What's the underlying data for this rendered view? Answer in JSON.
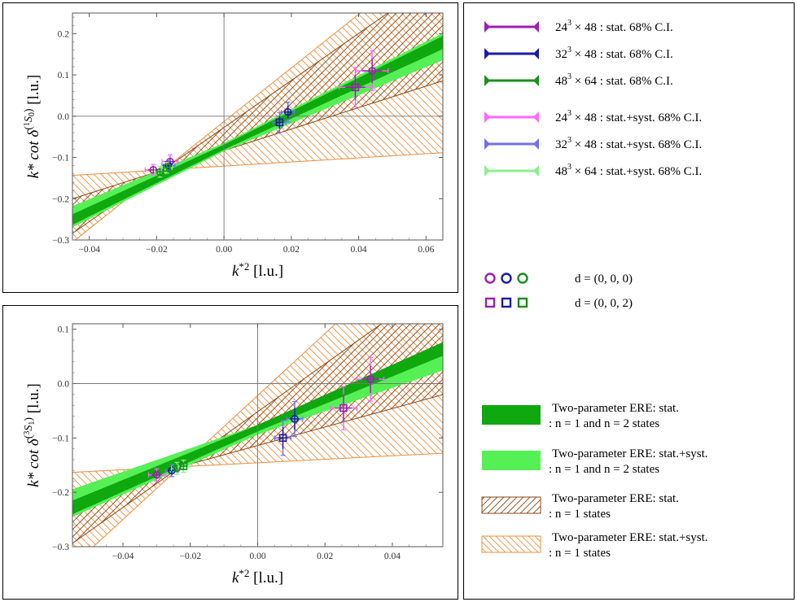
{
  "colors": {
    "purple_24": "#9b1fb0",
    "blue_32": "#1b1ba8",
    "green_48": "#1b8f1b",
    "pink_24_syst": "#ff66ff",
    "lblue_32_syst": "#7070ee",
    "lgreen_48_syst": "#8cf08c",
    "band_stat": "#0fa80f",
    "band_syst": "#55f055",
    "hatch_stat": "#8b4513",
    "hatch_syst": "#f08c3c"
  },
  "legend": {
    "errorbars": [
      {
        "base": "24",
        "exp": "3",
        "rest": " × 48 :  stat.  68% C.I.",
        "color": "#9b1fb0"
      },
      {
        "base": "32",
        "exp": "3",
        "rest": " × 48 :  stat.  68% C.I.",
        "color": "#1b1ba8"
      },
      {
        "base": "48",
        "exp": "3",
        "rest": " × 64 :  stat.  68% C.I.",
        "color": "#1b8f1b"
      },
      {
        "base": "24",
        "exp": "3",
        "rest": " × 48 :  stat.+syst.  68% C.I.",
        "color": "#ff66ff"
      },
      {
        "base": "32",
        "exp": "3",
        "rest": " × 48 :  stat.+syst.  68% C.I.",
        "color": "#7070ee"
      },
      {
        "base": "48",
        "exp": "3",
        "rest": " × 64 :  stat.+syst.  68% C.I.",
        "color": "#8cf08c"
      }
    ],
    "markers": [
      {
        "shape": "circle",
        "label": "d = (0, 0, 0)"
      },
      {
        "shape": "square",
        "label": "d = (0, 0, 2)"
      }
    ],
    "bands": [
      {
        "style": "solid-dark",
        "line1": "Two-parameter ERE: stat.",
        "line2": ": n = 1 and n = 2 states"
      },
      {
        "style": "solid-light",
        "line1": "Two-parameter ERE: stat.+syst.",
        "line2": ": n = 1 and n = 2 states"
      },
      {
        "style": "hatch-dark",
        "line1": "Two-parameter ERE: stat.",
        "line2": ": n = 1 states"
      },
      {
        "style": "hatch-light",
        "line1": "Two-parameter ERE: stat.+syst.",
        "line2": ": n = 1 states"
      }
    ]
  },
  "chart_data": [
    {
      "type": "scatter",
      "xlabel_main": "k",
      "xlabel_sup": "*2",
      "xlabel_unit": "[l.u.]",
      "ylabel_main": "k* cot δ",
      "ylabel_sup": "(",
      "ylabel_wave_sup": "1",
      "ylabel_wave": "S",
      "ylabel_wave_sub": "0",
      "ylabel_close": ")",
      "ylabel_unit": "[l.u.]",
      "xlim": [
        -0.045,
        0.065
      ],
      "ylim": [
        -0.3,
        0.25
      ],
      "xticks": [
        -0.04,
        -0.02,
        0.0,
        0.02,
        0.04,
        0.06
      ],
      "xtick_labels": [
        "−0.04",
        "−0.02",
        "0.00",
        "0.02",
        "0.04",
        "0.06"
      ],
      "yticks": [
        -0.3,
        -0.2,
        -0.1,
        0.0,
        0.1,
        0.2
      ],
      "ytick_labels": [
        "−0.3",
        "−0.2",
        "−0.1",
        "0.0",
        "0.1",
        "0.2"
      ],
      "bands": {
        "stat_dark": {
          "intercept": -0.075,
          "slope": 3.9,
          "halfwidth0": 0.006,
          "halfwidth_slope": 0.15
        },
        "syst_light": {
          "intercept": -0.075,
          "slope": 3.75,
          "halfwidth0": 0.01,
          "halfwidth_slope": 0.35
        },
        "hatch_stat": {
          "pivot_x": -0.018,
          "pivot_y": -0.13,
          "slope_lo": 2.6,
          "slope_hi": 5.7
        },
        "hatch_syst": {
          "pivot_x": -0.018,
          "pivot_y": -0.13,
          "slope_lo": 0.5,
          "slope_hi": 6.5
        }
      },
      "points": [
        {
          "ens": "24",
          "shape": "circle",
          "x": -0.021,
          "y": -0.13,
          "xerr": 0.0015,
          "yerr": 0.008
        },
        {
          "ens": "24",
          "shape": "circle",
          "x": -0.016,
          "y": -0.11,
          "xerr": 0.0015,
          "yerr": 0.01
        },
        {
          "ens": "24",
          "shape": "square",
          "x": 0.039,
          "y": 0.07,
          "xerr": 0.003,
          "yerr": 0.03
        },
        {
          "ens": "24",
          "shape": "circle",
          "x": 0.044,
          "y": 0.11,
          "xerr": 0.003,
          "yerr": 0.03
        },
        {
          "ens": "32",
          "shape": "circle",
          "x": -0.0165,
          "y": -0.12,
          "xerr": 0.0012,
          "yerr": 0.008
        },
        {
          "ens": "32",
          "shape": "square",
          "x": 0.0165,
          "y": -0.015,
          "xerr": 0.0012,
          "yerr": 0.015
        },
        {
          "ens": "32",
          "shape": "circle",
          "x": 0.019,
          "y": 0.01,
          "xerr": 0.0012,
          "yerr": 0.015
        },
        {
          "ens": "48",
          "shape": "circle",
          "x": -0.019,
          "y": -0.135,
          "xerr": 0.001,
          "yerr": 0.008
        },
        {
          "ens": "48",
          "shape": "square",
          "x": -0.017,
          "y": -0.125,
          "xerr": 0.001,
          "yerr": 0.008
        }
      ]
    },
    {
      "type": "scatter",
      "xlabel_main": "k",
      "xlabel_sup": "*2",
      "xlabel_unit": "[l.u.]",
      "ylabel_main": "k* cot δ",
      "ylabel_sup": "(",
      "ylabel_wave_sup": "3",
      "ylabel_wave": "S",
      "ylabel_wave_sub": "1",
      "ylabel_close": ")",
      "ylabel_unit": "[l.u.]",
      "xlim": [
        -0.055,
        0.055
      ],
      "ylim": [
        -0.3,
        0.11
      ],
      "xticks": [
        -0.04,
        -0.02,
        0.0,
        0.02,
        0.04
      ],
      "xtick_labels": [
        "−0.04",
        "−0.02",
        "0.00",
        "0.02",
        "0.04"
      ],
      "yticks": [
        -0.3,
        -0.2,
        -0.1,
        0.0,
        0.1
      ],
      "ytick_labels": [
        "−0.3",
        "−0.2",
        "−0.1",
        "0.0",
        "0.1"
      ],
      "bands": {
        "stat_dark": {
          "intercept": -0.082,
          "slope": 2.65,
          "halfwidth0": 0.006,
          "halfwidth_slope": 0.12
        },
        "syst_light": {
          "intercept": -0.085,
          "slope": 2.45,
          "halfwidth0": 0.009,
          "halfwidth_slope": 0.3
        },
        "hatch_stat": {
          "pivot_x": -0.023,
          "pivot_y": -0.153,
          "slope_lo": 1.7,
          "slope_hi": 4.4
        },
        "hatch_syst": {
          "pivot_x": -0.023,
          "pivot_y": -0.153,
          "slope_lo": 0.32,
          "slope_hi": 5.7
        }
      },
      "points": [
        {
          "ens": "24",
          "shape": "circle",
          "x": -0.03,
          "y": -0.168,
          "xerr": 0.0015,
          "yerr": 0.007
        },
        {
          "ens": "24",
          "shape": "square",
          "x": 0.0255,
          "y": -0.045,
          "xerr": 0.0025,
          "yerr": 0.025
        },
        {
          "ens": "24",
          "shape": "circle",
          "x": 0.0335,
          "y": 0.008,
          "xerr": 0.0025,
          "yerr": 0.025
        },
        {
          "ens": "32",
          "shape": "circle",
          "x": -0.0255,
          "y": -0.16,
          "xerr": 0.0012,
          "yerr": 0.007
        },
        {
          "ens": "32",
          "shape": "square",
          "x": 0.0075,
          "y": -0.1,
          "xerr": 0.0015,
          "yerr": 0.02
        },
        {
          "ens": "32",
          "shape": "circle",
          "x": 0.011,
          "y": -0.065,
          "xerr": 0.0015,
          "yerr": 0.02
        },
        {
          "ens": "48",
          "shape": "circle",
          "x": -0.024,
          "y": -0.156,
          "xerr": 0.001,
          "yerr": 0.007
        },
        {
          "ens": "48",
          "shape": "square",
          "x": -0.022,
          "y": -0.152,
          "xerr": 0.001,
          "yerr": 0.007
        }
      ]
    }
  ]
}
